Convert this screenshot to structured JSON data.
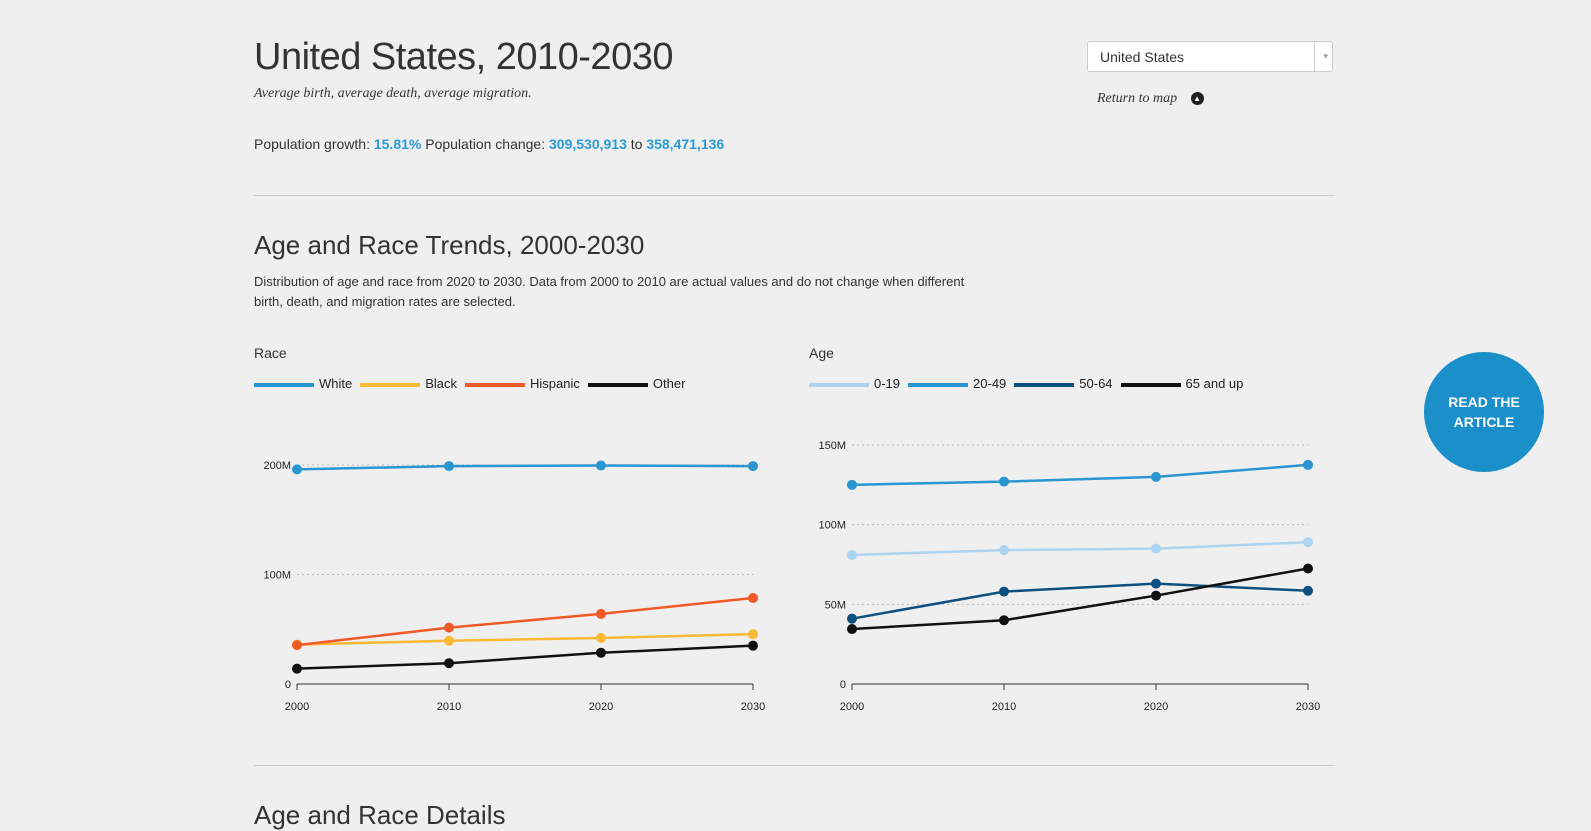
{
  "header": {
    "title": "United States, 2010-2030",
    "subtitle": "Average birth, average death, average migration.",
    "growth_label": "Population growth:",
    "growth_value": "15.81%",
    "change_label": "Population change:",
    "change_from": "309,530,913",
    "change_to_word": "to",
    "change_to": "358,471,136"
  },
  "selector": {
    "selected": "United States",
    "arrow": "▾"
  },
  "return_link": {
    "label": "Return to map",
    "icon": "chevron-up-circle-icon"
  },
  "section": {
    "title": "Age and Race Trends, 2000-2030",
    "description": "Distribution of age and race from 2020 to 2030. Data from 2000 to 2010 are actual values and do not change when different birth, death, and migration rates are selected."
  },
  "read_button": {
    "label": "READ THE ARTICLE"
  },
  "next_section": {
    "title": "Age and Race Details"
  },
  "colors": {
    "accent": "#2a9bd4",
    "button": "#1b8fc9"
  },
  "chart_data": [
    {
      "type": "line",
      "title": "Race",
      "x": [
        2000,
        2010,
        2020,
        2030
      ],
      "ylim": [
        0,
        200
      ],
      "yticks": [
        {
          "v": 0,
          "label": "0"
        },
        {
          "v": 100,
          "label": "100M"
        },
        {
          "v": 200,
          "label": "200M"
        }
      ],
      "series": [
        {
          "name": "White",
          "color": "#2a96d0",
          "values": [
            196,
            199,
            199.5,
            199
          ]
        },
        {
          "name": "Black",
          "color": "#fbb934",
          "values": [
            36,
            39.5,
            42,
            45.5
          ]
        },
        {
          "name": "Hispanic",
          "color": "#f05a28",
          "values": [
            35.5,
            51.5,
            64,
            78.5
          ]
        },
        {
          "name": "Other",
          "color": "#111111",
          "values": [
            14,
            19,
            28.5,
            35
          ]
        }
      ]
    },
    {
      "type": "line",
      "title": "Age",
      "x": [
        2000,
        2010,
        2020,
        2030
      ],
      "ylim": [
        0,
        150
      ],
      "yticks": [
        {
          "v": 0,
          "label": "0"
        },
        {
          "v": 50,
          "label": "50M"
        },
        {
          "v": 100,
          "label": "100M"
        },
        {
          "v": 150,
          "label": "150M"
        }
      ],
      "series": [
        {
          "name": "0-19",
          "color": "#acd3ef",
          "values": [
            81,
            84,
            85,
            89
          ]
        },
        {
          "name": "20-49",
          "color": "#2a96d0",
          "values": [
            125,
            127,
            130,
            137.5
          ]
        },
        {
          "name": "50-64",
          "color": "#0d4f7f",
          "values": [
            41,
            58,
            63,
            58.5
          ]
        },
        {
          "name": "65 and up",
          "color": "#111111",
          "values": [
            34.5,
            40,
            55.5,
            72.5
          ]
        }
      ]
    }
  ]
}
